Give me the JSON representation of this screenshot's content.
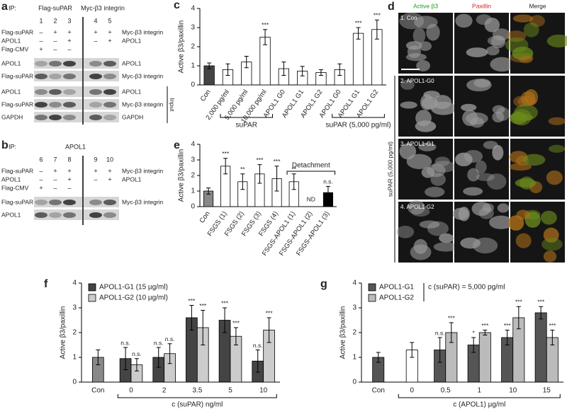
{
  "blots": [
    {
      "panel": "a",
      "ip_label": "IP:",
      "ip_groups": [
        "Flag-suPAR",
        "Myc-β3 integrin"
      ],
      "lanes": [
        "1",
        "2",
        "3",
        "4",
        "5"
      ],
      "conditions": [
        {
          "left": "Flag-suPAR",
          "signs": [
            "–",
            "+",
            "+",
            "+",
            "+"
          ],
          "right": "Myc-β3 integrin"
        },
        {
          "left": "APOL1",
          "signs": [
            "–",
            "–",
            "+",
            "–",
            "+"
          ],
          "right": "APOL1"
        },
        {
          "left": "Flag-CMV",
          "signs": [
            "+",
            "–",
            "–"
          ]
        }
      ],
      "rows": [
        {
          "left": "APOL1",
          "right": "APOL1"
        },
        {
          "left": "Flag-suPAR",
          "right": "Myc-β3 integrin"
        },
        {
          "left": "APOL1",
          "right": "APOL1"
        },
        {
          "left": "Flag-suPAR",
          "right": "Myc-β3 integrin"
        },
        {
          "left": "GAPDH",
          "right": "GAPDH"
        }
      ],
      "input_label": "Input"
    },
    {
      "panel": "b",
      "ip_label": "IP:",
      "ip_groups": [
        "APOL1"
      ],
      "lanes": [
        "6",
        "7",
        "8",
        "9",
        "10"
      ],
      "conditions": [
        {
          "left": "Flag-suPAR",
          "signs": [
            "–",
            "+",
            "+",
            "+",
            "+"
          ],
          "right": "Myc-β3 integrin"
        },
        {
          "left": "APOL1",
          "signs": [
            "–",
            "–",
            "+",
            "–",
            "+"
          ],
          "right": "APOL1"
        },
        {
          "left": "Flag-CMV",
          "signs": [
            "+",
            "–",
            "–"
          ]
        }
      ],
      "rows": [
        {
          "left": "Flag-suPAR",
          "right": "Myc-β3 integrin"
        },
        {
          "left": "APOL1"
        }
      ]
    }
  ],
  "microscopy": {
    "panel": "d",
    "columns": [
      "Active β3",
      "Paxillin",
      "Merge"
    ],
    "rows": [
      "1. Con",
      "2. APOL1-G0",
      "3. APOL1-G1",
      "4. APOL1-G2"
    ],
    "side_label": "suPAR (5,000 pg/ml)"
  },
  "chart_data": [
    {
      "panel": "c",
      "type": "bar",
      "ylabel": "Active β3/paxillin",
      "ylim": [
        0,
        4
      ],
      "yticks": [
        0,
        1,
        2,
        3,
        4
      ],
      "categories": [
        "Con",
        "2,000 pg/ml",
        "5,000 pg/ml",
        "10,000 pg/ml",
        "APOL1 G0",
        "APOL1 G1",
        "APOL1 G2",
        "APOL1 G0",
        "APOL1 G1",
        "APOL1 G2"
      ],
      "series": [
        {
          "colors": [
            "#444444",
            "#ffffff",
            "#ffffff",
            "#ffffff",
            "#ffffff",
            "#ffffff",
            "#ffffff",
            "#ffffff",
            "#ffffff",
            "#ffffff"
          ],
          "values": [
            1.0,
            0.8,
            1.2,
            2.5,
            0.85,
            0.72,
            0.65,
            0.8,
            2.7,
            2.9
          ],
          "errors": [
            0.15,
            0.3,
            0.3,
            0.4,
            0.35,
            0.25,
            0.15,
            0.3,
            0.3,
            0.5
          ],
          "labels": [
            null,
            null,
            null,
            "***",
            null,
            null,
            null,
            null,
            "***",
            "***"
          ]
        }
      ],
      "groups": [
        "suPAR",
        "suPAR (5,000 pg/ml)"
      ]
    },
    {
      "panel": "e",
      "type": "bar",
      "ylabel": "Active β3/paxillin",
      "ylim": [
        0,
        4
      ],
      "yticks": [
        0,
        1,
        2,
        3,
        4
      ],
      "categories": [
        "Con",
        "FSGS (1)",
        "FSGS (2)",
        "FSGS (3)",
        "FSGS (4)",
        "FSGS-APOL1 (1)",
        "FSGS-APOL1 (2)",
        "FSGS-APOL1 (3)"
      ],
      "series": [
        {
          "colors": [
            "#888888",
            "#ffffff",
            "#ffffff",
            "#ffffff",
            "#ffffff",
            "#ffffff",
            "#ffffff",
            "#000000"
          ],
          "values": [
            1.0,
            2.6,
            1.6,
            2.1,
            1.8,
            1.6,
            null,
            0.9
          ],
          "errors": [
            0.2,
            0.5,
            0.5,
            0.6,
            0.8,
            0.5,
            null,
            0.4
          ],
          "labels": [
            null,
            "***",
            "**",
            "***",
            "***",
            "**",
            "ND",
            "n.s."
          ]
        }
      ],
      "annotation": "Detachment"
    },
    {
      "panel": "f",
      "type": "bar",
      "ylabel": "Active β3/paxillin",
      "xlabel": "c (suPAR) ng/ml",
      "ylim": [
        0,
        4
      ],
      "yticks": [
        0,
        1,
        2,
        3,
        4
      ],
      "categories": [
        "Con",
        "0",
        "2",
        "3.5",
        "5",
        "10"
      ],
      "series": [
        {
          "color": "#888888",
          "values": [
            1.0,
            null,
            null,
            null,
            null,
            null
          ],
          "errors": [
            0.3,
            null,
            null,
            null,
            null,
            null
          ]
        },
        {
          "name": "APOL1-G1 (15 µg/ml)",
          "color": "#444444",
          "values": [
            null,
            0.95,
            1.0,
            2.6,
            2.5,
            0.85
          ],
          "errors": [
            null,
            0.45,
            0.4,
            0.5,
            0.5,
            0.45
          ],
          "labels": [
            null,
            "n.s.",
            "n.s.",
            "***",
            "***",
            "n.s."
          ]
        },
        {
          "name": "APOL1-G2 (10 µg/ml)",
          "color": "#cccccc",
          "values": [
            null,
            0.7,
            1.15,
            2.2,
            1.85,
            2.1
          ],
          "errors": [
            null,
            0.25,
            0.4,
            0.7,
            0.35,
            0.5
          ],
          "labels": [
            null,
            "n.s.",
            "n.s.",
            "***",
            "***",
            "***"
          ]
        }
      ]
    },
    {
      "panel": "g",
      "type": "bar",
      "ylabel": "Active β3/paxillin",
      "xlabel": "c (APOL1) µg/ml",
      "ylim": [
        0,
        4
      ],
      "yticks": [
        0,
        1,
        2,
        3,
        4
      ],
      "categories": [
        "Con",
        "0",
        "0.5",
        "1",
        "10",
        "15"
      ],
      "note": "c (suPAR) = 5,000 pg/ml",
      "series": [
        {
          "color": "#555555",
          "values": [
            1.0,
            null,
            null,
            null,
            null,
            null
          ],
          "errors": [
            0.2,
            null,
            null,
            null,
            null,
            null
          ]
        },
        {
          "color": "#ffffff",
          "values": [
            null,
            1.3,
            null,
            null,
            null,
            null
          ],
          "errors": [
            null,
            0.3,
            null,
            null,
            null,
            null
          ]
        },
        {
          "name": "APOL1-G1",
          "color": "#555555",
          "values": [
            null,
            null,
            1.3,
            1.5,
            1.8,
            2.8
          ],
          "errors": [
            null,
            null,
            0.5,
            0.3,
            0.3,
            0.25
          ],
          "labels": [
            null,
            null,
            "n.s.",
            "*",
            "***",
            "***"
          ]
        },
        {
          "name": "APOL1-G2",
          "color": "#bbbbbb",
          "values": [
            null,
            null,
            2.0,
            2.0,
            2.6,
            1.8
          ],
          "errors": [
            null,
            null,
            0.4,
            0.1,
            0.45,
            0.3
          ],
          "labels": [
            null,
            null,
            "***",
            "***",
            "***",
            "***"
          ]
        }
      ]
    }
  ]
}
